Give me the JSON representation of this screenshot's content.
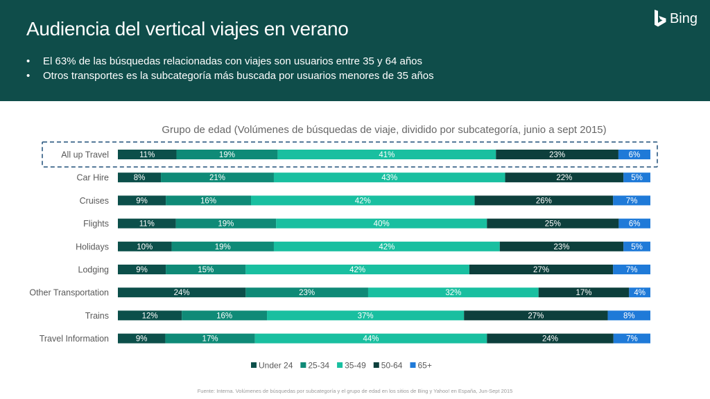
{
  "header": {
    "title": "Audiencia del vertical viajes en verano",
    "logo_text": "Bing",
    "bullets": [
      "El 63% de las búsquedas relacionadas con viajes son usuarios entre 35 y 64 años",
      "Otros transportes es la subcategoría más buscada por usuarios menores de 35 años"
    ]
  },
  "chart_data": {
    "type": "bar",
    "orientation": "horizontal",
    "stacked": "percent",
    "title": "Grupo de edad (Volúmenes de búsquedas de viaje, dividido por subcategoría, junio a sept 2015)",
    "categories": [
      "All up Travel",
      "Car Hire",
      "Cruises",
      "Flights",
      "Holidays",
      "Lodging",
      "Other Transportation",
      "Trains",
      "Travel Information"
    ],
    "highlighted_category": "All up Travel",
    "series": [
      {
        "name": "Under 24",
        "color": "#0c4f4a",
        "values": [
          11,
          8,
          9,
          11,
          10,
          9,
          24,
          12,
          9
        ]
      },
      {
        "name": "25-34",
        "color": "#0f8a77",
        "values": [
          19,
          21,
          16,
          19,
          19,
          15,
          23,
          16,
          17
        ]
      },
      {
        "name": "35-49",
        "color": "#19bfa0",
        "values": [
          41,
          43,
          42,
          40,
          42,
          42,
          32,
          37,
          44
        ]
      },
      {
        "name": "50-64",
        "color": "#0d3f3c",
        "values": [
          23,
          22,
          26,
          25,
          23,
          27,
          17,
          27,
          24
        ]
      },
      {
        "name": "65+",
        "color": "#1f7ad8",
        "values": [
          6,
          5,
          7,
          6,
          5,
          7,
          4,
          8,
          7
        ]
      }
    ],
    "value_suffix": "%",
    "legend_position": "bottom",
    "grid": false
  },
  "footnote": "Fuente: Interna. Volúmenes de búsquedas por subcategoría y el grupo de edad en los sitios de Bing y Yahoo! en España, Jun-Sept 2015"
}
